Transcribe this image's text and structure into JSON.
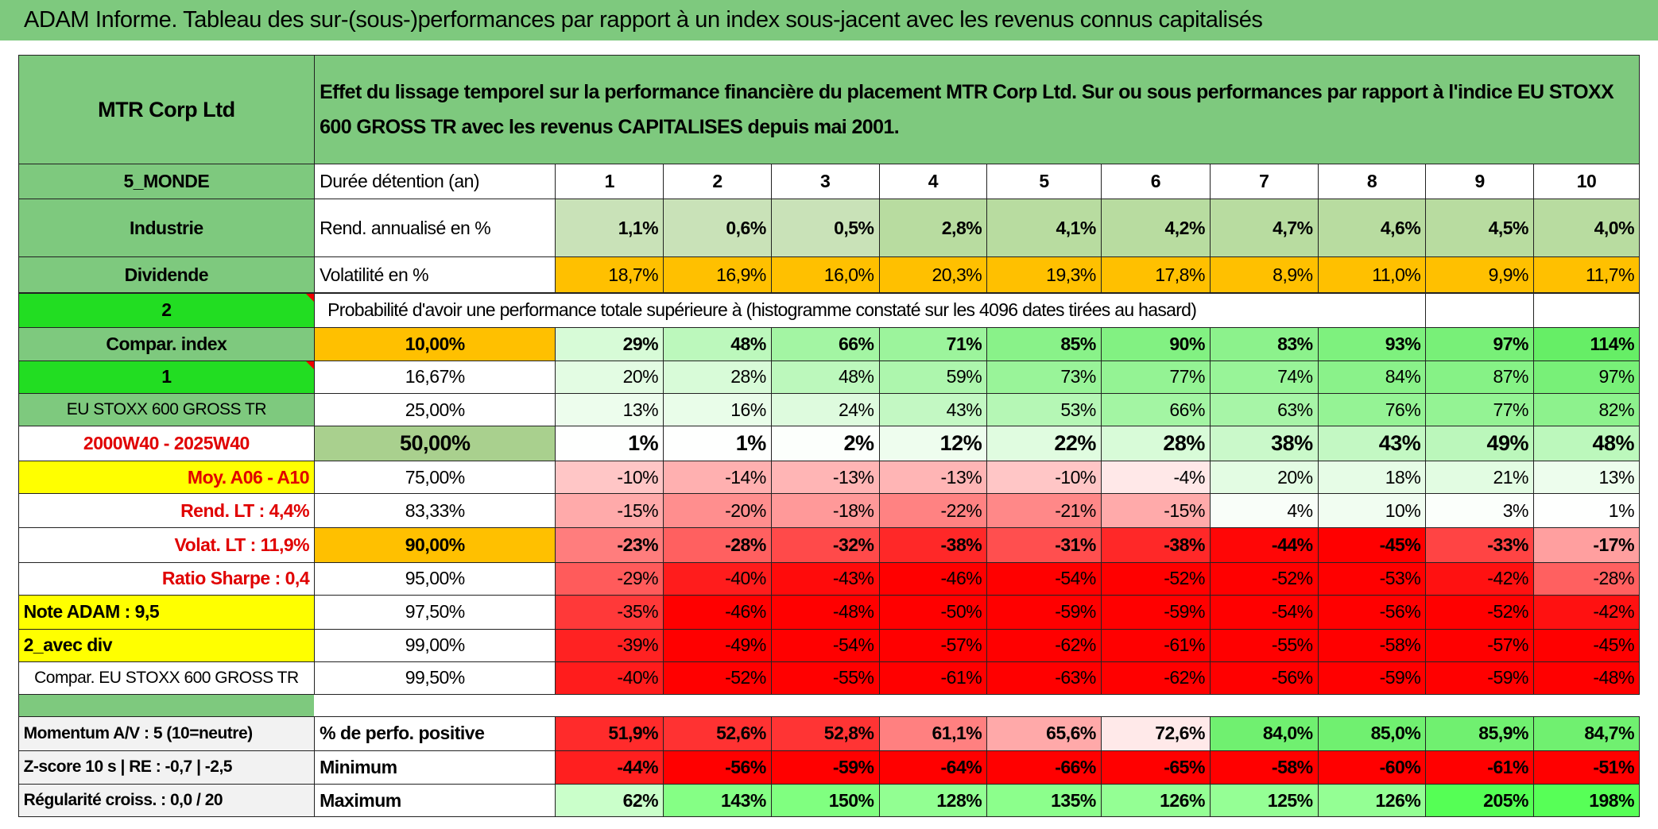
{
  "title": "ADAM Informe. Tableau des sur-(sous-)performances par rapport à un index sous-jacent avec les revenus connus capitalisés",
  "table": {
    "header": {
      "name": "MTR Corp Ltd",
      "description": "Effet du lissage temporel sur la performance financière du placement MTR Corp Ltd. Sur ou sous performances par rapport à l'indice EU STOXX 600 GROSS TR avec les revenus CAPITALISES depuis mai 2001."
    },
    "rows": [
      {
        "side": "5_MONDE",
        "label": "Durée détention (an)",
        "cells": [
          1,
          2,
          3,
          4,
          5,
          6,
          7,
          8,
          9,
          10
        ]
      },
      {
        "side": "Industrie",
        "label": "Rend. annualisé en %",
        "cells": [
          "1,1%",
          "0,6%",
          "0,5%",
          "2,8%",
          "4,1%",
          "4,2%",
          "4,7%",
          "4,6%",
          "4,5%",
          "4,0%"
        ]
      },
      {
        "side": "Dividende",
        "label": "Volatilité en %",
        "cells": [
          "18,7%",
          "16,9%",
          "16,0%",
          "20,3%",
          "19,3%",
          "17,8%",
          "8,9%",
          "11,0%",
          "9,9%",
          "11,7%"
        ]
      },
      {
        "side": "2",
        "label": "Probabilité d'avoir une performance totale supérieure à (histogramme constaté sur les 4096 dates tirées au hasard)"
      },
      {
        "side": "Compar. index",
        "label": "10,00%",
        "cells": [
          "29%",
          "48%",
          "66%",
          "71%",
          "85%",
          "90%",
          "83%",
          "93%",
          "97%",
          "114%"
        ]
      },
      {
        "side": "1",
        "label": "16,67%",
        "cells": [
          "20%",
          "28%",
          "48%",
          "59%",
          "73%",
          "77%",
          "74%",
          "84%",
          "87%",
          "97%"
        ]
      },
      {
        "side": "EU STOXX 600 GROSS TR",
        "label": "25,00%",
        "cells": [
          "13%",
          "16%",
          "24%",
          "43%",
          "53%",
          "66%",
          "63%",
          "76%",
          "77%",
          "82%"
        ]
      },
      {
        "side": "2000W40 - 2025W40",
        "label": "50,00%",
        "cells": [
          "1%",
          "1%",
          "2%",
          "12%",
          "22%",
          "28%",
          "38%",
          "43%",
          "49%",
          "48%"
        ]
      },
      {
        "side": "Moy. A06 - A10",
        "label": "75,00%",
        "cells": [
          "-10%",
          "-14%",
          "-13%",
          "-13%",
          "-10%",
          "-4%",
          "20%",
          "18%",
          "21%",
          "13%"
        ]
      },
      {
        "side": "Rend. LT :   4,4%",
        "label": "83,33%",
        "cells": [
          "-15%",
          "-20%",
          "-18%",
          "-22%",
          "-21%",
          "-15%",
          "4%",
          "10%",
          "3%",
          "1%"
        ]
      },
      {
        "side": "Volat. LT :   11,9%",
        "label": "90,00%",
        "cells": [
          "-23%",
          "-28%",
          "-32%",
          "-38%",
          "-31%",
          "-38%",
          "-44%",
          "-45%",
          "-33%",
          "-17%"
        ]
      },
      {
        "side": "Ratio Sharpe :   0,4",
        "label": "95,00%",
        "cells": [
          "-29%",
          "-40%",
          "-43%",
          "-46%",
          "-54%",
          "-52%",
          "-52%",
          "-53%",
          "-42%",
          "-28%"
        ]
      },
      {
        "side": "Note ADAM : 9,5",
        "label": "97,50%",
        "cells": [
          "-35%",
          "-46%",
          "-48%",
          "-50%",
          "-59%",
          "-59%",
          "-54%",
          "-56%",
          "-52%",
          "-42%"
        ]
      },
      {
        "side": "2_avec div",
        "label": "99,00%",
        "cells": [
          "-39%",
          "-49%",
          "-54%",
          "-57%",
          "-62%",
          "-61%",
          "-55%",
          "-58%",
          "-57%",
          "-45%"
        ]
      },
      {
        "side": "Compar. EU STOXX 600 GROSS TR",
        "label": "99,50%",
        "cells": [
          "-40%",
          "-52%",
          "-55%",
          "-61%",
          "-63%",
          "-62%",
          "-56%",
          "-59%",
          "-59%",
          "-48%"
        ]
      },
      {
        "side": "Momentum A/V : 5 (10=neutre)",
        "label": "% de perfo. positive",
        "cells": [
          "51,9%",
          "52,6%",
          "52,8%",
          "61,1%",
          "65,6%",
          "72,6%",
          "84,0%",
          "85,0%",
          "85,9%",
          "84,7%"
        ]
      },
      {
        "side": "Z-score 10 s | RE : -0,7 | -2,5",
        "label": "Minimum",
        "cells": [
          "-44%",
          "-56%",
          "-59%",
          "-64%",
          "-66%",
          "-65%",
          "-58%",
          "-60%",
          "-61%",
          "-51%"
        ]
      },
      {
        "side": "Régularité croiss. : 0,0 / 20",
        "label": "Maximum",
        "cells": [
          "62%",
          "143%",
          "150%",
          "128%",
          "135%",
          "126%",
          "125%",
          "126%",
          "205%",
          "198%"
        ]
      }
    ]
  }
}
